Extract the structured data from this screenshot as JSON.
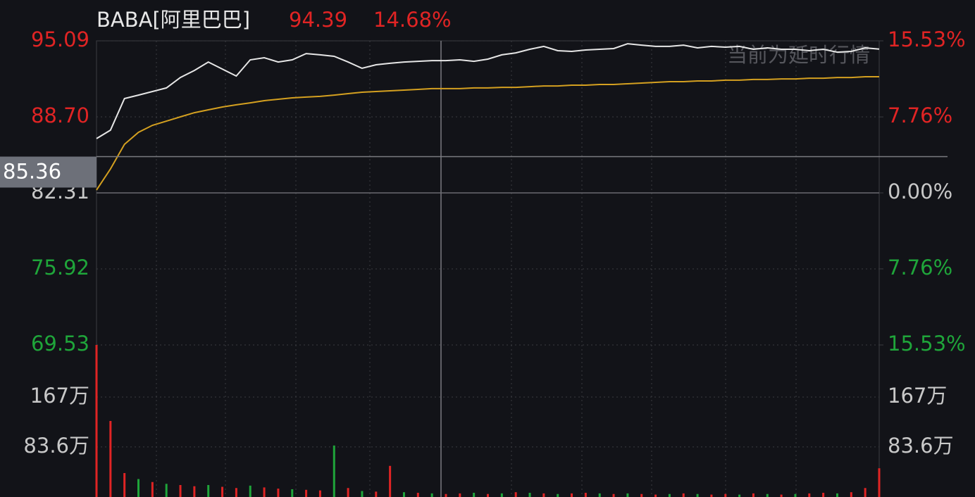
{
  "chart_data": {
    "type": "line",
    "header": {
      "symbol": "BABA[阿里巴巴]",
      "price": "94.39",
      "change": "14.68%"
    },
    "annotation": "当前为延时行情",
    "crosshair": 85.36,
    "ylim": [
      69.53,
      95.09
    ],
    "yticks": [
      95.09,
      {
        "value": 88.7,
        "label": "88.70"
      },
      82.31,
      75.92,
      69.53
    ],
    "y2lim": [
      -15.53,
      15.53
    ],
    "y2ticks": [
      {
        "value": 15.53,
        "label": "15.53%"
      },
      {
        "value": 7.76,
        "label": "7.76%"
      },
      {
        "value": 0,
        "label": "0.00%"
      },
      {
        "value": -7.76,
        "label": "7.76%"
      },
      {
        "value": -15.53,
        "label": "15.53%"
      }
    ],
    "up_color": "#e02424",
    "down_color": "#1fa53a",
    "flat_color": "#c8c8c8",
    "series": [
      {
        "color": "#e6e6e6",
        "values": [
          86.87,
          87.58,
          90.24,
          90.53,
          90.83,
          91.13,
          92.01,
          92.6,
          93.31,
          92.72,
          92.13,
          93.49,
          93.67,
          93.31,
          93.49,
          94.02,
          93.91,
          93.79,
          93.31,
          92.78,
          93.08,
          93.2,
          93.31,
          93.37,
          93.43,
          93.43,
          93.49,
          93.37,
          93.55,
          93.91,
          94.08,
          94.38,
          94.62,
          94.26,
          94.2,
          94.32,
          94.38,
          94.44,
          94.85,
          94.73,
          94.62,
          94.62,
          94.73,
          94.5,
          94.62,
          94.56,
          94.62,
          94.38,
          94.5,
          94.38,
          94.38,
          94.26,
          94.38,
          94.14,
          94.2,
          94.5,
          94.39
        ]
      },
      {
        "color": "#d4a020",
        "values": [
          82.55,
          84.32,
          86.39,
          87.4,
          87.99,
          88.34,
          88.7,
          89.05,
          89.29,
          89.53,
          89.71,
          89.88,
          90.06,
          90.18,
          90.3,
          90.36,
          90.42,
          90.53,
          90.65,
          90.77,
          90.83,
          90.89,
          90.95,
          91.01,
          91.07,
          91.07,
          91.07,
          91.13,
          91.13,
          91.18,
          91.18,
          91.24,
          91.3,
          91.3,
          91.36,
          91.36,
          91.42,
          91.42,
          91.48,
          91.54,
          91.6,
          91.66,
          91.66,
          91.72,
          91.72,
          91.78,
          91.78,
          91.84,
          91.84,
          91.89,
          91.89,
          91.95,
          91.95,
          92.01,
          92.01,
          92.07,
          92.07
        ]
      }
    ],
    "volume": {
      "type": "bar",
      "ylim": [
        0,
        2540000
      ],
      "yticks": [
        {
          "value": 1670000,
          "label": "167万"
        },
        {
          "value": 836000,
          "label": "83.6万"
        }
      ],
      "values": [
        2540000,
        1270000,
        400000,
        300000,
        250000,
        220000,
        200000,
        180000,
        200000,
        170000,
        150000,
        190000,
        160000,
        140000,
        130000,
        120000,
        110000,
        860000,
        150000,
        100000,
        90000,
        520000,
        80000,
        70000,
        60000,
        50000,
        60000,
        70000,
        50000,
        60000,
        80000,
        70000,
        60000,
        50000,
        60000,
        70000,
        60000,
        50000,
        60000,
        50000,
        40000,
        50000,
        60000,
        50000,
        40000,
        50000,
        40000,
        60000,
        50000,
        40000,
        50000,
        60000,
        70000,
        60000,
        80000,
        150000,
        480000
      ],
      "colors": [
        "#e02424",
        "#e02424",
        "#e02424",
        "#1fa53a",
        "#e02424",
        "#1fa53a",
        "#e02424",
        "#e02424",
        "#1fa53a",
        "#e02424",
        "#e02424",
        "#1fa53a",
        "#e02424",
        "#e02424",
        "#1fa53a",
        "#e02424",
        "#e02424",
        "#1fa53a",
        "#e02424",
        "#1fa53a",
        "#e02424",
        "#e02424",
        "#1fa53a",
        "#e02424",
        "#1fa53a",
        "#e02424",
        "#e02424",
        "#1fa53a",
        "#e02424",
        "#1fa53a",
        "#e02424",
        "#1fa53a",
        "#e02424",
        "#1fa53a",
        "#e02424",
        "#e02424",
        "#1fa53a",
        "#e02424",
        "#1fa53a",
        "#e02424",
        "#e02424",
        "#1fa53a",
        "#e02424",
        "#1fa53a",
        "#e02424",
        "#e02424",
        "#1fa53a",
        "#e02424",
        "#1fa53a",
        "#e02424",
        "#1fa53a",
        "#e02424",
        "#e02424",
        "#1fa53a",
        "#e02424",
        "#e02424",
        "#e02424"
      ]
    }
  }
}
